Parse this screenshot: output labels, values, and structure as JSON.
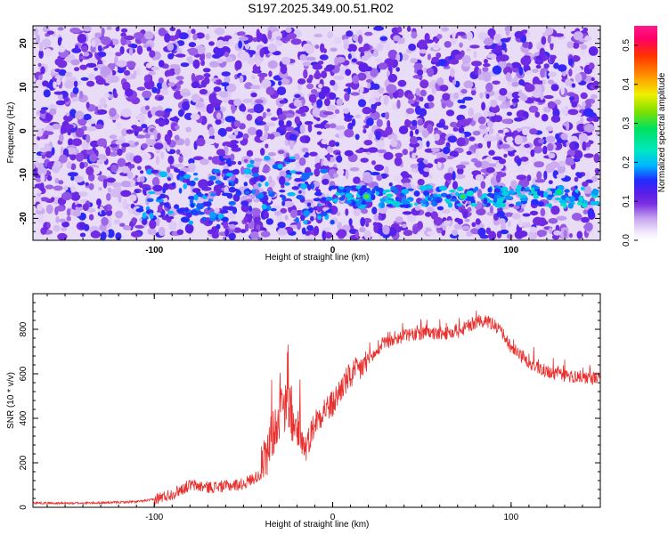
{
  "title": "S197.2025.349.00.51.R02",
  "chart_data": [
    {
      "type": "heatmap",
      "xlabel": "Height of straight line (km)",
      "ylabel": "Frequency (Hz)",
      "xlim": [
        -168,
        150
      ],
      "ylim": [
        -25,
        24
      ],
      "x_ticks": [
        -100,
        0,
        100
      ],
      "y_ticks": [
        -20,
        -10,
        0,
        10,
        20
      ],
      "colorbar": {
        "label": "Normalized spectral amplitude",
        "range": [
          0.0,
          0.55
        ],
        "ticks": [
          0.0,
          0.1,
          0.2,
          0.3,
          0.4,
          0.5
        ],
        "tick_labels": [
          "0.0",
          "0.1",
          "0.2",
          "0.3",
          "0.4",
          "0.5"
        ]
      },
      "signal_band_hz": -15,
      "signal_band_x_range": [
        -110,
        150
      ],
      "peak_hotspots": [
        {
          "x": 19,
          "y": -15,
          "value": 0.32
        },
        {
          "x": 73,
          "y": -15,
          "value": 0.3
        },
        {
          "x": 127,
          "y": -14,
          "value": 0.28
        }
      ],
      "background_level": 0.05
    },
    {
      "type": "line",
      "xlabel": "Height of straight line (km)",
      "ylabel": "SNR (10 * v/v)",
      "xlim": [
        -168,
        150
      ],
      "ylim": [
        0,
        960
      ],
      "x_ticks": [
        -100,
        0,
        100
      ],
      "y_ticks": [
        0,
        200,
        400,
        600,
        800
      ],
      "line_color": "#e8302e",
      "series": [
        {
          "x": [
            -168,
            -150,
            -130,
            -110,
            -100,
            -90,
            -80,
            -70,
            -60,
            -50,
            -40,
            -35,
            -30,
            -25,
            -20,
            -15,
            -10,
            -5,
            0,
            5,
            10,
            15,
            20,
            30,
            40,
            50,
            60,
            70,
            75,
            80,
            85,
            90,
            95,
            100,
            110,
            120,
            130,
            140,
            150
          ],
          "values": [
            20,
            18,
            20,
            25,
            35,
            60,
            100,
            90,
            95,
            105,
            150,
            300,
            420,
            450,
            330,
            270,
            380,
            440,
            460,
            540,
            590,
            620,
            660,
            740,
            770,
            780,
            780,
            785,
            810,
            830,
            835,
            820,
            780,
            720,
            650,
            610,
            590,
            585,
            580
          ]
        }
      ]
    }
  ]
}
